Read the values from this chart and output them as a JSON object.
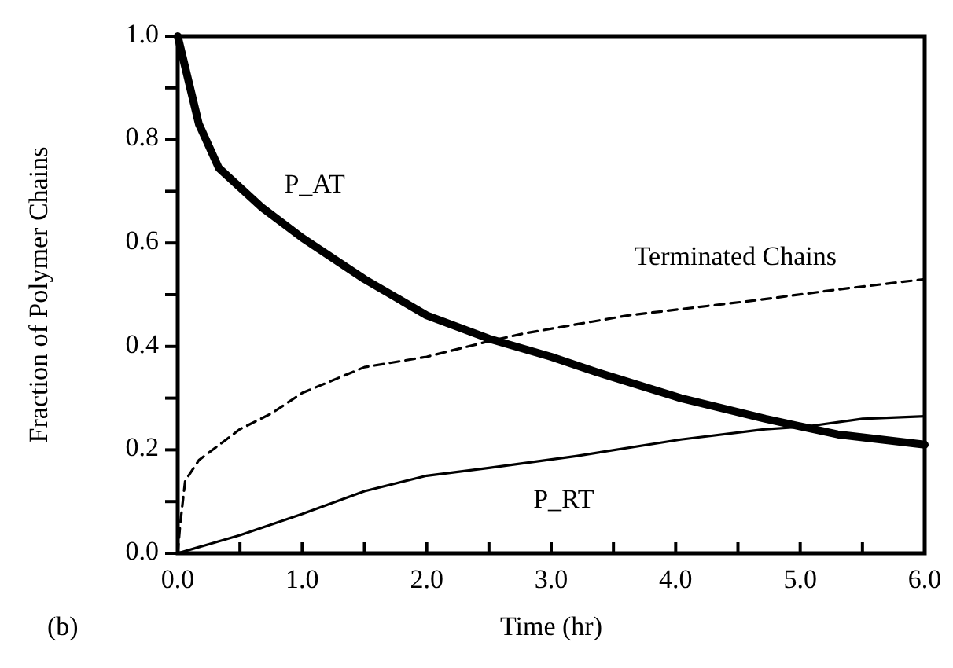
{
  "chart_data": {
    "type": "line",
    "xlabel": "Time (hr)",
    "ylabel": "Fraction of Polymer Chains",
    "xlim": [
      0,
      6
    ],
    "ylim": [
      0,
      1
    ],
    "xticks": [
      {
        "value": 0,
        "label": "0.0"
      },
      {
        "value": 0.5,
        "label": null
      },
      {
        "value": 1,
        "label": "1.0"
      },
      {
        "value": 1.5,
        "label": null
      },
      {
        "value": 2,
        "label": "2.0"
      },
      {
        "value": 2.5,
        "label": null
      },
      {
        "value": 3,
        "label": "3.0"
      },
      {
        "value": 3.5,
        "label": null
      },
      {
        "value": 4,
        "label": "4.0"
      },
      {
        "value": 4.5,
        "label": null
      },
      {
        "value": 5,
        "label": "5.0"
      },
      {
        "value": 5.5,
        "label": null
      },
      {
        "value": 6,
        "label": "6.0"
      }
    ],
    "yticks": [
      {
        "value": 0,
        "label": "0.0"
      },
      {
        "value": 0.1,
        "label": null
      },
      0.2,
      {
        "value": 0.3,
        "label": null
      },
      0.4,
      {
        "value": 0.5,
        "label": null
      },
      0.6,
      {
        "value": 0.7,
        "label": null
      },
      0.8,
      {
        "value": 0.9,
        "label": null
      },
      {
        "value": 1,
        "label": "1.0"
      }
    ],
    "marker": "none",
    "series": [
      {
        "name": "P_AT",
        "color": "#000000",
        "line_style": "solid",
        "x": [
          0,
          0.17,
          0.33,
          0.67,
          1.0,
          1.5,
          2.0,
          2.5,
          3.0,
          3.37,
          4.04,
          4.72,
          5.3,
          6.0
        ],
        "values": [
          1.0,
          0.83,
          0.745,
          0.67,
          0.61,
          0.53,
          0.46,
          0.415,
          0.38,
          0.35,
          0.3,
          0.26,
          0.23,
          0.21
        ]
      },
      {
        "name": "Terminated Chains",
        "color": "#000000",
        "line_style": "dashed",
        "x": [
          0,
          0.02,
          0.06,
          0.17,
          0.5,
          0.75,
          1.0,
          1.5,
          2.0,
          2.5,
          2.78,
          3.62,
          4.67,
          5.3,
          6.0
        ],
        "values": [
          0,
          0.056,
          0.14,
          0.18,
          0.24,
          0.27,
          0.31,
          0.36,
          0.38,
          0.41,
          0.425,
          0.46,
          0.49,
          0.51,
          0.53
        ]
      },
      {
        "name": "P_RT",
        "color": "#000000",
        "line_style": "solid",
        "x": [
          0,
          0.5,
          1.0,
          1.5,
          2.0,
          2.5,
          3.2,
          4.04,
          4.72,
          5.05,
          5.5,
          6.0
        ],
        "values": [
          0,
          0.035,
          0.076,
          0.12,
          0.15,
          0.165,
          0.188,
          0.22,
          0.24,
          0.245,
          0.26,
          0.265
        ]
      }
    ],
    "annotations": [
      "(b)"
    ]
  }
}
